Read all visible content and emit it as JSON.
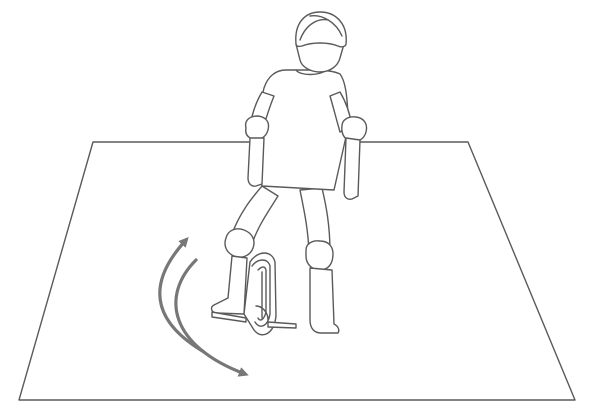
{
  "colors": {
    "background": "#ffffff",
    "line": "#5a5a5a",
    "arrow": "#777777"
  },
  "icons": {
    "figure": "rider-figure",
    "vehicle": "electric-unicycle",
    "motion": "curved-double-arrow"
  }
}
